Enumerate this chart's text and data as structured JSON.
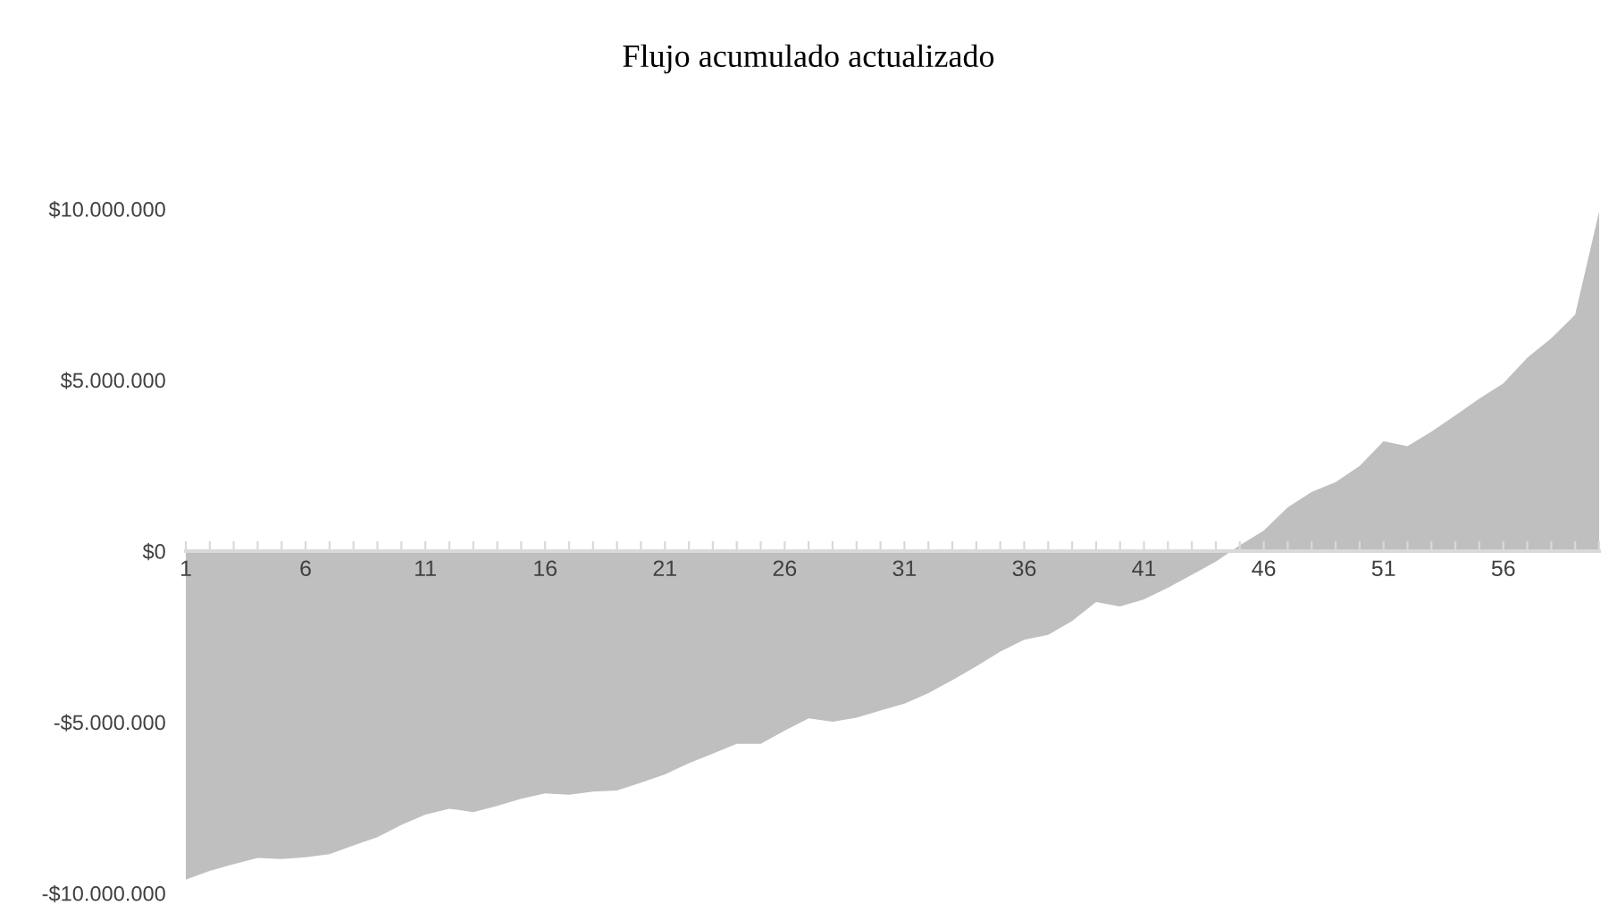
{
  "chart_data": {
    "type": "area",
    "title": "Flujo acumulado actualizado",
    "categories": [
      "1",
      null,
      null,
      null,
      null,
      "6",
      null,
      null,
      null,
      null,
      "11",
      null,
      null,
      null,
      null,
      "16",
      null,
      null,
      null,
      null,
      "21",
      null,
      null,
      null,
      null,
      "26",
      null,
      null,
      null,
      null,
      "31",
      null,
      null,
      null,
      null,
      "36",
      null,
      null,
      null,
      null,
      "41",
      null,
      null,
      null,
      null,
      "46",
      null,
      null,
      null,
      null,
      "51",
      null,
      null,
      null,
      null,
      "56",
      null,
      null,
      null,
      null
    ],
    "series": [
      {
        "color": "#bfbfbf",
        "values": [
          -9600000,
          -9350000,
          -9150000,
          -8970000,
          -9000000,
          -8950000,
          -8860000,
          -8600000,
          -8360000,
          -8000000,
          -7700000,
          -7530000,
          -7630000,
          -7450000,
          -7240000,
          -7080000,
          -7120000,
          -7030000,
          -7000000,
          -6770000,
          -6530000,
          -6200000,
          -5920000,
          -5630000,
          -5630000,
          -5250000,
          -4890000,
          -4990000,
          -4870000,
          -4660000,
          -4460000,
          -4150000,
          -3770000,
          -3370000,
          -2940000,
          -2590000,
          -2450000,
          -2040000,
          -1490000,
          -1620000,
          -1410000,
          -1070000,
          -690000,
          -310000,
          170000,
          600000,
          1280000,
          1730000,
          2020000,
          2490000,
          3210000,
          3070000,
          3490000,
          3970000,
          4460000,
          4900000,
          5650000,
          6220000,
          6910000,
          9930000
        ]
      }
    ],
    "ylim": [
      -10000000,
      10000000
    ],
    "yticks": [
      {
        "value": -10000000,
        "label": "-$10.000.000"
      },
      {
        "value": -5000000,
        "label": "-$5.000.000"
      },
      {
        "value": 0,
        "label": "$0"
      },
      {
        "value": 5000000,
        "label": "$5.000.000"
      },
      {
        "value": 10000000,
        "label": "$10.000.000"
      }
    ],
    "grid": false,
    "legend": false
  }
}
